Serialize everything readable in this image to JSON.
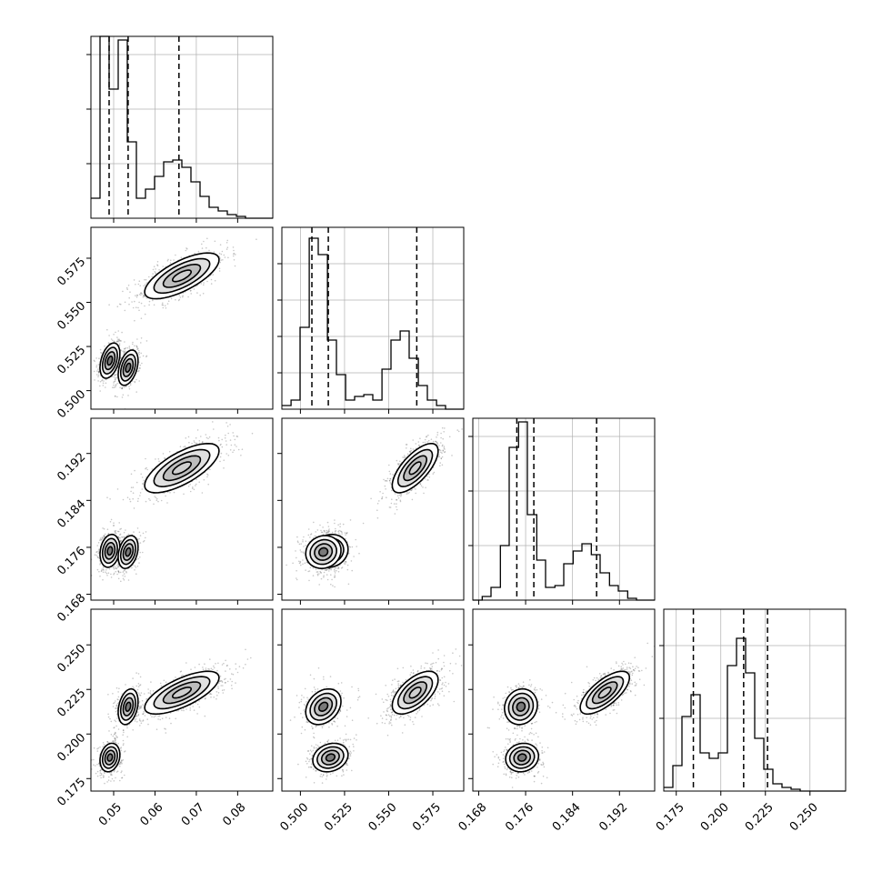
{
  "chart_data": {
    "type": "corner",
    "n_params": 4,
    "axes": [
      {
        "ticks": [
          0.05,
          0.06,
          0.07,
          0.08
        ],
        "tick_labels": [
          "0.05",
          "0.06",
          "0.07",
          "0.08"
        ],
        "range": [
          0.0445,
          0.0885
        ]
      },
      {
        "ticks": [
          0.5,
          0.525,
          0.55,
          0.575
        ],
        "tick_labels": [
          "0.500",
          "0.525",
          "0.550",
          "0.575"
        ],
        "range": [
          0.4895,
          0.5925
        ]
      },
      {
        "ticks": [
          0.168,
          0.176,
          0.184,
          0.192
        ],
        "tick_labels": [
          "0.168",
          "0.176",
          "0.184",
          "0.192"
        ],
        "range": [
          0.167,
          0.198
        ]
      },
      {
        "ticks": [
          0.175,
          0.2,
          0.225,
          0.25
        ],
        "tick_labels": [
          "0.175",
          "0.200",
          "0.225",
          "0.250"
        ],
        "range": [
          0.168,
          0.27
        ]
      }
    ],
    "diagonal": [
      {
        "bin_edges": [
          0.0445,
          0.0467,
          0.0489,
          0.0511,
          0.0533,
          0.0555,
          0.0577,
          0.0599,
          0.0621,
          0.0643,
          0.0665,
          0.0687,
          0.0709,
          0.0731,
          0.0753,
          0.0775,
          0.0797,
          0.0819,
          0.0841,
          0.0863,
          0.0885
        ],
        "counts": [
          0.11,
          1.0,
          0.71,
          0.98,
          0.42,
          0.11,
          0.16,
          0.23,
          0.31,
          0.32,
          0.28,
          0.2,
          0.12,
          0.06,
          0.04,
          0.02,
          0.01,
          0.0,
          0.0,
          0.0
        ],
        "quantiles": [
          0.0489,
          0.0535,
          0.0658
        ],
        "ytick_fractions": [
          0.3,
          0.6,
          0.9
        ]
      },
      {
        "bin_edges": [
          0.4895,
          0.4947,
          0.4998,
          0.505,
          0.5101,
          0.5153,
          0.5204,
          0.5256,
          0.5307,
          0.5359,
          0.541,
          0.5462,
          0.5513,
          0.5565,
          0.5616,
          0.5668,
          0.5719,
          0.5771,
          0.5822,
          0.5874,
          0.5925
        ],
        "counts": [
          0.02,
          0.05,
          0.45,
          0.94,
          0.85,
          0.38,
          0.19,
          0.05,
          0.07,
          0.08,
          0.05,
          0.22,
          0.38,
          0.43,
          0.28,
          0.13,
          0.05,
          0.02,
          0.0,
          0.0
        ],
        "quantiles": [
          0.5065,
          0.5158,
          0.5659
        ],
        "ytick_fractions": [
          0.2,
          0.4,
          0.6,
          0.8
        ]
      },
      {
        "bin_edges": [
          0.167,
          0.1686,
          0.1701,
          0.1717,
          0.1732,
          0.1748,
          0.1763,
          0.1779,
          0.1794,
          0.181,
          0.1825,
          0.1841,
          0.1856,
          0.1872,
          0.1887,
          0.1903,
          0.1918,
          0.1934,
          0.1949,
          0.1965,
          0.198
        ],
        "counts": [
          0.0,
          0.02,
          0.07,
          0.3,
          0.84,
          0.98,
          0.47,
          0.22,
          0.07,
          0.08,
          0.2,
          0.27,
          0.31,
          0.25,
          0.15,
          0.08,
          0.05,
          0.01,
          0.0,
          0.0
        ],
        "quantiles": [
          0.1745,
          0.1774,
          0.1881
        ],
        "ytick_fractions": [
          0.3,
          0.6,
          0.9
        ]
      },
      {
        "bin_edges": [
          0.168,
          0.1731,
          0.1782,
          0.1833,
          0.1884,
          0.1935,
          0.1986,
          0.2037,
          0.2088,
          0.2139,
          0.219,
          0.2241,
          0.2292,
          0.2343,
          0.2394,
          0.2445,
          0.2496,
          0.2547,
          0.2598,
          0.2649,
          0.27
        ],
        "counts": [
          0.02,
          0.14,
          0.41,
          0.53,
          0.21,
          0.18,
          0.21,
          0.69,
          0.84,
          0.65,
          0.29,
          0.12,
          0.04,
          0.02,
          0.01,
          0.0,
          0.0,
          0.0,
          0.0,
          0.0
        ],
        "quantiles": [
          0.1846,
          0.2128,
          0.2262
        ],
        "ytick_fractions": [
          0.4,
          0.8
        ]
      }
    ],
    "modes": [
      {
        "weight": 0.3,
        "mean": [
          0.0491,
          0.517,
          0.1754,
          0.1868
        ],
        "sd": [
          0.0012,
          0.005,
          0.0014,
          0.004
        ],
        "rotation": [
          0.4,
          0.2,
          0.2,
          0.1,
          0.2,
          0.1
        ]
      },
      {
        "weight": 0.25,
        "mean": [
          0.0535,
          0.513,
          0.1752,
          0.2153
        ],
        "sd": [
          0.0012,
          0.005,
          0.0014,
          0.005
        ],
        "rotation": [
          0.4,
          0.3,
          0.3,
          0.1,
          0.3,
          0.1
        ]
      },
      {
        "weight": 0.45,
        "mean": [
          0.0665,
          0.565,
          0.1895,
          0.2232
        ],
        "sd": [
          0.0045,
          0.0065,
          0.0021,
          0.006
        ],
        "rotation": [
          0.7,
          0.7,
          0.7,
          0.7,
          0.6,
          0.7
        ]
      }
    ],
    "contour_levels": [
      0.118,
      0.393,
      0.675,
      0.865
    ],
    "title": "",
    "xlabels": [
      "",
      "",
      "",
      ""
    ],
    "ylabels": [
      "",
      "",
      "",
      ""
    ]
  }
}
